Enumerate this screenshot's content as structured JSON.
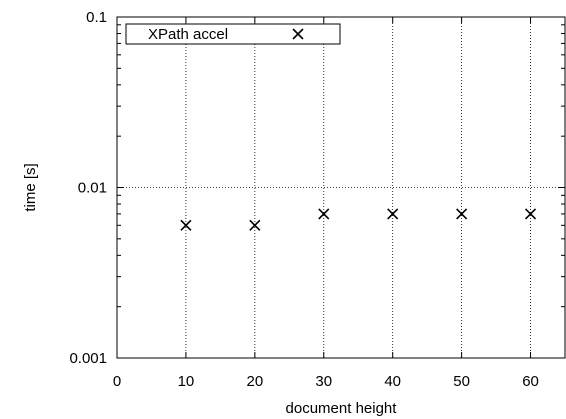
{
  "chart_data": {
    "type": "scatter",
    "xlabel": "document height",
    "ylabel": "time [s]",
    "xlim": [
      0,
      65
    ],
    "ylim": [
      0.001,
      0.1
    ],
    "yscale": "log",
    "grid": true,
    "legend_position": "top-left",
    "x_ticks": [
      "0",
      "10",
      "20",
      "30",
      "40",
      "50",
      "60"
    ],
    "y_ticks": [
      "0.001",
      "0.01",
      "0.1"
    ],
    "series": [
      {
        "name": "XPath accel",
        "marker": "x",
        "x": [
          10,
          20,
          30,
          40,
          50,
          60
        ],
        "y": [
          0.006,
          0.006,
          0.007,
          0.007,
          0.007,
          0.007
        ]
      }
    ]
  }
}
